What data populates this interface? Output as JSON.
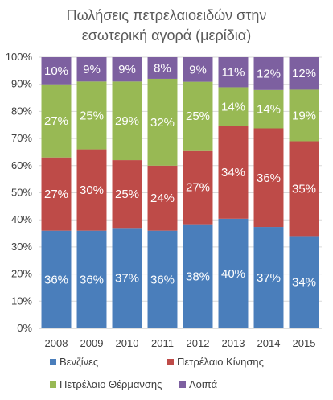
{
  "chart_data": {
    "type": "bar",
    "stacked": "percent",
    "title": [
      "Πωλήσεις πετρελαιοειδών στην",
      "εσωτερική αγορά (μερίδια)"
    ],
    "categories": [
      "2008",
      "2009",
      "2010",
      "2011",
      "2012",
      "2013",
      "2014",
      "2015"
    ],
    "ylim": [
      0,
      100
    ],
    "yticks": [
      "0%",
      "10%",
      "20%",
      "30%",
      "40%",
      "50%",
      "60%",
      "70%",
      "80%",
      "90%",
      "100%"
    ],
    "grid": true,
    "legend_position": "bottom",
    "series": [
      {
        "name": "Βενζίνες",
        "color": "#4a7ebb",
        "values": [
          36,
          36,
          37,
          36,
          38,
          40,
          37,
          34
        ],
        "labels": [
          "36%",
          "36%",
          "37%",
          "36%",
          "38%",
          "40%",
          "37%",
          "34%"
        ]
      },
      {
        "name": "Πετρέλαιο Κίνησης",
        "color": "#be4b48",
        "values": [
          27,
          30,
          25,
          24,
          27,
          34,
          36,
          35
        ],
        "labels": [
          "27%",
          "30%",
          "25%",
          "24%",
          "27%",
          "34%",
          "36%",
          "35%"
        ]
      },
      {
        "name": "Πετρέλαιο Θέρμανσης",
        "color": "#98b954",
        "values": [
          27,
          25,
          29,
          32,
          25,
          14,
          14,
          19
        ],
        "labels": [
          "27%",
          "25%",
          "29%",
          "32%",
          "25%",
          "14%",
          "14%",
          "19%"
        ]
      },
      {
        "name": "Λοιπά",
        "color": "#7d60a0",
        "values": [
          10,
          9,
          9,
          8,
          9,
          11,
          12,
          12
        ],
        "labels": [
          "10%",
          "9%",
          "9%",
          "8%",
          "9%",
          "11%",
          "12%",
          "12%"
        ]
      }
    ]
  }
}
